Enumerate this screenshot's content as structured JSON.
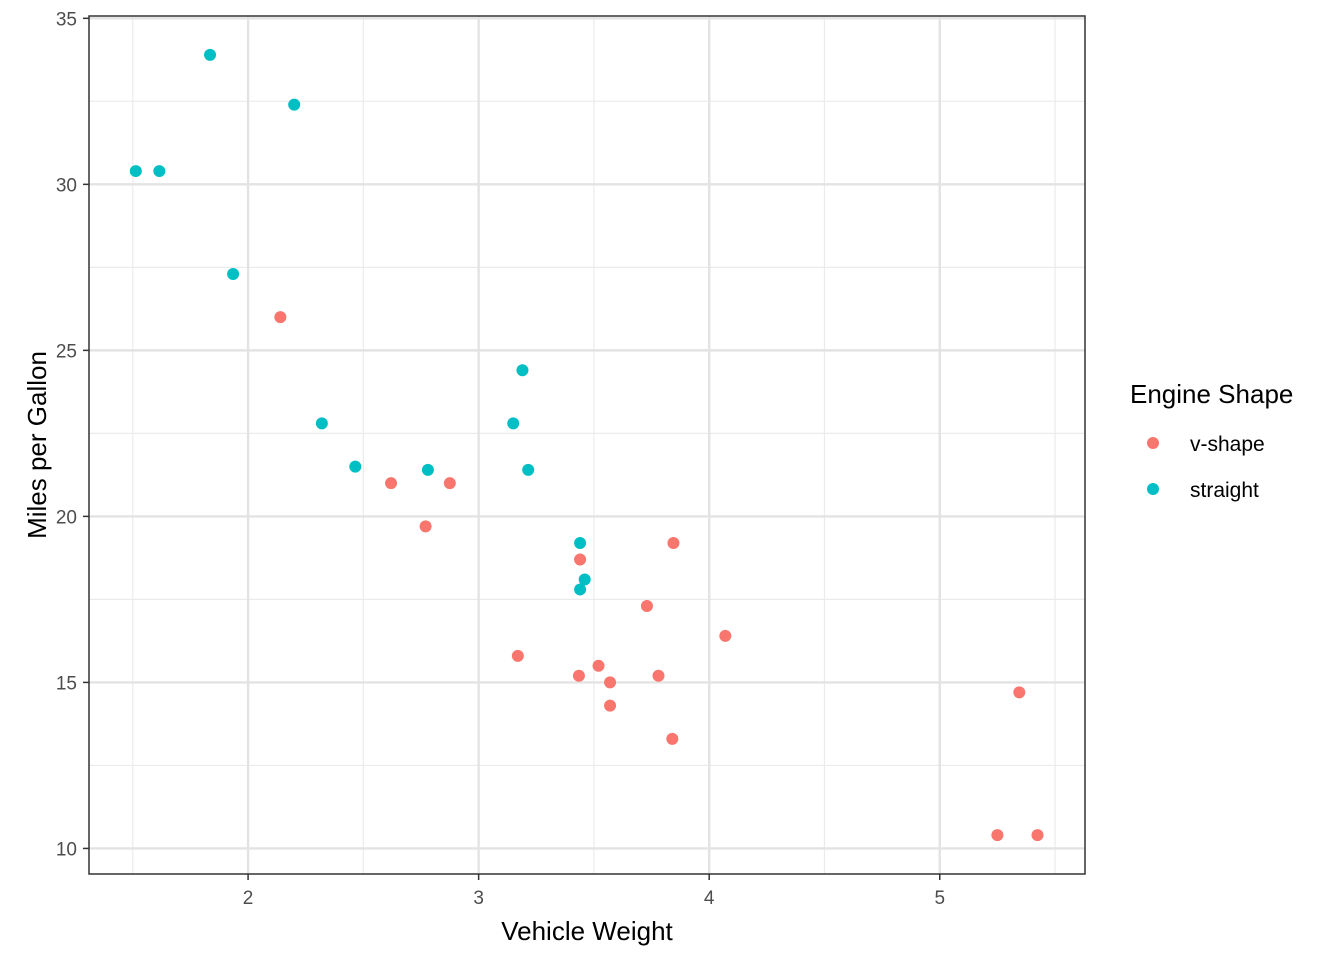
{
  "chart_data": {
    "type": "scatter",
    "title": "",
    "xlabel": "Vehicle Weight",
    "ylabel": "Miles per Gallon",
    "xlim": [
      1.31,
      5.63
    ],
    "ylim": [
      9.23,
      35.07
    ],
    "x_ticks": [
      2,
      3,
      4,
      5
    ],
    "y_ticks": [
      10,
      15,
      20,
      25,
      30,
      35
    ],
    "x_tick_labels": [
      "2",
      "3",
      "4",
      "5"
    ],
    "y_tick_labels": [
      "10",
      "15",
      "20",
      "25",
      "30",
      "35"
    ],
    "x_minor_ticks": [
      1.5,
      2.5,
      3.5,
      4.5,
      5.5
    ],
    "y_minor_ticks": [
      12.5,
      17.5,
      22.5,
      27.5,
      32.5
    ],
    "grid": true,
    "legend": {
      "title": "Engine Shape",
      "position": "right"
    },
    "series": [
      {
        "name": "v-shape",
        "color": "#F8766D",
        "points": [
          {
            "x": 2.14,
            "y": 26.0
          },
          {
            "x": 2.62,
            "y": 21.0
          },
          {
            "x": 2.875,
            "y": 21.0
          },
          {
            "x": 2.77,
            "y": 19.7
          },
          {
            "x": 3.44,
            "y": 18.7
          },
          {
            "x": 3.845,
            "y": 19.2
          },
          {
            "x": 3.73,
            "y": 17.3
          },
          {
            "x": 4.07,
            "y": 16.4
          },
          {
            "x": 3.17,
            "y": 15.8
          },
          {
            "x": 3.52,
            "y": 15.5
          },
          {
            "x": 3.435,
            "y": 15.2
          },
          {
            "x": 3.78,
            "y": 15.2
          },
          {
            "x": 3.57,
            "y": 15.0
          },
          {
            "x": 3.57,
            "y": 14.3
          },
          {
            "x": 3.84,
            "y": 13.3
          },
          {
            "x": 5.345,
            "y": 14.7
          },
          {
            "x": 5.25,
            "y": 10.4
          },
          {
            "x": 5.424,
            "y": 10.4
          }
        ]
      },
      {
        "name": "straight",
        "color": "#00BFC4",
        "points": [
          {
            "x": 1.835,
            "y": 33.9
          },
          {
            "x": 2.2,
            "y": 32.4
          },
          {
            "x": 1.513,
            "y": 30.4
          },
          {
            "x": 1.615,
            "y": 30.4
          },
          {
            "x": 1.935,
            "y": 27.3
          },
          {
            "x": 2.32,
            "y": 22.8
          },
          {
            "x": 2.465,
            "y": 21.5
          },
          {
            "x": 2.78,
            "y": 21.4
          },
          {
            "x": 3.19,
            "y": 24.4
          },
          {
            "x": 3.15,
            "y": 22.8
          },
          {
            "x": 3.215,
            "y": 21.4
          },
          {
            "x": 3.44,
            "y": 19.2
          },
          {
            "x": 3.46,
            "y": 18.1
          },
          {
            "x": 3.44,
            "y": 17.8
          }
        ]
      }
    ]
  }
}
